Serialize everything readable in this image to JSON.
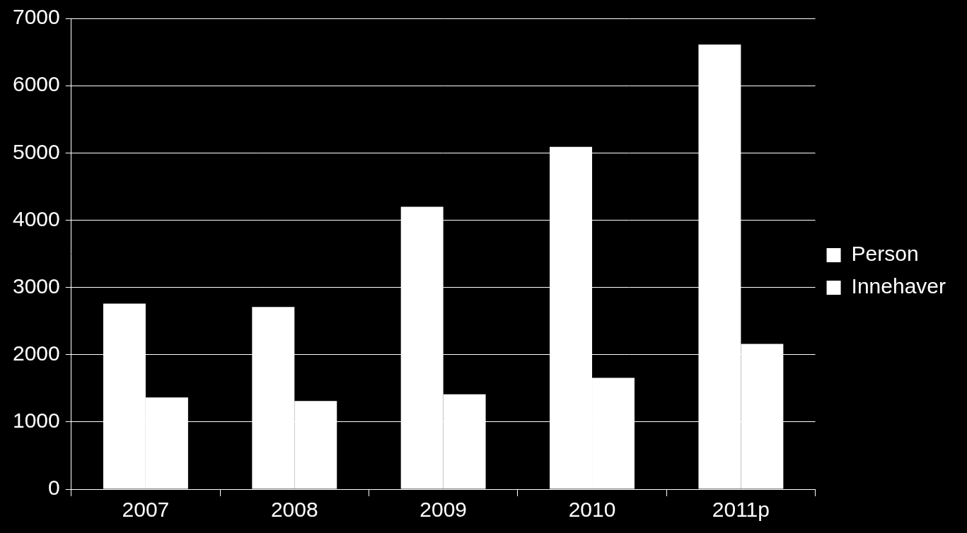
{
  "chart_data": {
    "type": "bar",
    "categories": [
      "2007",
      "2008",
      "2009",
      "2010",
      "2011p"
    ],
    "series": [
      {
        "name": "Person",
        "color": "#ffffff",
        "values": [
          2760,
          2710,
          4200,
          5090,
          6610
        ]
      },
      {
        "name": "Innehaver",
        "color": "#ffffff",
        "values": [
          1365,
          1310,
          1410,
          1655,
          2160
        ]
      }
    ],
    "ylim": [
      0,
      7000
    ],
    "yticks": [
      0,
      1000,
      2000,
      3000,
      4000,
      5000,
      6000,
      7000
    ],
    "grid": true,
    "legend": "right"
  }
}
